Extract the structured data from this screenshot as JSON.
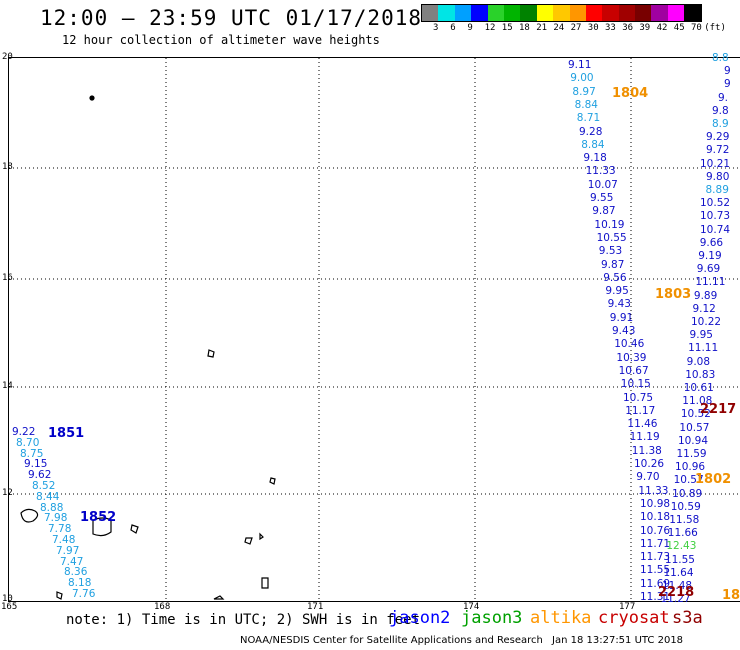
{
  "header": {
    "title": "12:00 – 23:59 UTC 01/17/2018",
    "subtitle": "12 hour collection of altimeter wave heights"
  },
  "color_scale": {
    "colors": [
      "#808080",
      "#00e5e5",
      "#00a0ff",
      "#0000ff",
      "#2ad22a",
      "#00b400",
      "#008200",
      "#ffff00",
      "#ffc800",
      "#ff9600",
      "#ff0000",
      "#c80000",
      "#a00000",
      "#780000",
      "#a000a0",
      "#ff00ff",
      "#000000"
    ],
    "labels": [
      "3",
      "6",
      "9",
      "12",
      "15",
      "18",
      "21",
      "24",
      "27",
      "30",
      "33",
      "36",
      "39",
      "42",
      "45",
      "70",
      "(ft)"
    ]
  },
  "axes": {
    "lat_labels": [
      "20",
      "18",
      "16",
      "14",
      "12",
      "10"
    ],
    "lon_labels": [
      "165",
      "168",
      "171",
      "174",
      "177"
    ]
  },
  "tracks": [
    {
      "color": "#1010c8",
      "values": [
        "9.11"
      ]
    },
    {
      "color": "#20a0e0",
      "values": [
        "9.00",
        "8.97",
        "8.84",
        "8.71"
      ]
    },
    {
      "color": "#1010c8",
      "values": [
        "9.28"
      ]
    },
    {
      "color": "#20a0e0",
      "values": [
        "8.84"
      ]
    },
    {
      "color": "#1010c8",
      "values": [
        "9.18",
        "11.33",
        "10.07",
        "9.55",
        "9.87",
        "10.19",
        "10.55",
        "9.53",
        "9.87",
        "9.56",
        "9.95",
        "9.43",
        "9.91",
        "9.43",
        "10.46",
        "10.39",
        "10.67",
        "10.15",
        "10.75",
        "11.17",
        "11.46",
        "11.19",
        "11.38",
        "10.26",
        "9.70",
        "11.33",
        "10.98",
        "10.18",
        "10.76",
        "11.71",
        "11.73",
        "11.55",
        "11.69",
        "11.31"
      ]
    }
  ],
  "right_track": {
    "values": [
      {
        "v": "8.8",
        "c": "#20a0e0"
      },
      {
        "v": "9",
        "c": "#1010c8"
      },
      {
        "v": "9",
        "c": "#1010c8"
      },
      {
        "v": "9.",
        "c": "#1010c8"
      },
      {
        "v": "9.8",
        "c": "#1010c8"
      },
      {
        "v": "8.9",
        "c": "#20a0e0"
      },
      {
        "v": "9.29",
        "c": "#1010c8"
      },
      {
        "v": "9.72",
        "c": "#1010c8"
      },
      {
        "v": "10.21",
        "c": "#1010c8"
      },
      {
        "v": "9.80",
        "c": "#1010c8"
      },
      {
        "v": "8.89",
        "c": "#20a0e0"
      },
      {
        "v": "10.52",
        "c": "#1010c8"
      },
      {
        "v": "10.73",
        "c": "#1010c8"
      },
      {
        "v": "10.74",
        "c": "#1010c8"
      },
      {
        "v": "9.66",
        "c": "#1010c8"
      },
      {
        "v": "9.19",
        "c": "#1010c8"
      },
      {
        "v": "9.69",
        "c": "#1010c8"
      },
      {
        "v": "11.11",
        "c": "#1010c8"
      },
      {
        "v": "9.89",
        "c": "#1010c8"
      },
      {
        "v": "9.12",
        "c": "#1010c8"
      },
      {
        "v": "10.22",
        "c": "#1010c8"
      },
      {
        "v": "9.95",
        "c": "#1010c8"
      },
      {
        "v": "11.11",
        "c": "#1010c8"
      },
      {
        "v": "9.08",
        "c": "#1010c8"
      },
      {
        "v": "10.83",
        "c": "#1010c8"
      },
      {
        "v": "10.61",
        "c": "#1010c8"
      },
      {
        "v": "11.08",
        "c": "#1010c8"
      },
      {
        "v": "10.52",
        "c": "#1010c8"
      },
      {
        "v": "10.57",
        "c": "#1010c8"
      },
      {
        "v": "10.94",
        "c": "#1010c8"
      },
      {
        "v": "11.59",
        "c": "#1010c8"
      },
      {
        "v": "10.96",
        "c": "#1010c8"
      },
      {
        "v": "10.57",
        "c": "#1010c8"
      },
      {
        "v": "10.89",
        "c": "#1010c8"
      },
      {
        "v": "10.59",
        "c": "#1010c8"
      },
      {
        "v": "11.58",
        "c": "#1010c8"
      },
      {
        "v": "11.66",
        "c": "#1010c8"
      },
      {
        "v": "12.43",
        "c": "#40d040"
      },
      {
        "v": "11.55",
        "c": "#1010c8"
      },
      {
        "v": "11.64",
        "c": "#1010c8"
      },
      {
        "v": "11.48",
        "c": "#1010c8"
      },
      {
        "v": "11.27",
        "c": "#1010c8"
      }
    ]
  },
  "left_track": {
    "values": [
      {
        "v": "9.22",
        "c": "#1010c8"
      },
      {
        "v": "8.70",
        "c": "#20a0e0"
      },
      {
        "v": "8.75",
        "c": "#20a0e0"
      },
      {
        "v": "9.15",
        "c": "#1010c8"
      },
      {
        "v": "9.62",
        "c": "#1010c8"
      },
      {
        "v": "8.52",
        "c": "#20a0e0"
      },
      {
        "v": "8.44",
        "c": "#20a0e0"
      },
      {
        "v": "8.88",
        "c": "#20a0e0"
      },
      {
        "v": "7.98",
        "c": "#20a0e0"
      },
      {
        "v": "7.78",
        "c": "#20a0e0"
      },
      {
        "v": "7.48",
        "c": "#20a0e0"
      },
      {
        "v": "7.97",
        "c": "#20a0e0"
      },
      {
        "v": "7.47",
        "c": "#20a0e0"
      },
      {
        "v": "8.36",
        "c": "#20a0e0"
      },
      {
        "v": "8.18",
        "c": "#20a0e0"
      },
      {
        "v": "7.76",
        "c": "#20a0e0"
      }
    ]
  },
  "time_tags": [
    {
      "label": "1804",
      "color": "#f09000"
    },
    {
      "label": "1803",
      "color": "#f09000"
    },
    {
      "label": "1802",
      "color": "#f09000"
    },
    {
      "label": "2217",
      "color": "#900000"
    },
    {
      "label": "2218",
      "color": "#900000"
    },
    {
      "label": "1851",
      "color": "#0000c8"
    },
    {
      "label": "1852",
      "color": "#0000c8"
    },
    {
      "label": "18",
      "color": "#f09000"
    }
  ],
  "footer": {
    "note": "note: 1) Time is in UTC; 2) SWH is in feet",
    "satellites": [
      {
        "name": "jason2",
        "color": "#0000ff"
      },
      {
        "name": "jason3",
        "color": "#00a000"
      },
      {
        "name": "altika",
        "color": "#ff9600"
      },
      {
        "name": "cryosat",
        "color": "#c80000"
      },
      {
        "name": "s3a",
        "color": "#900000"
      }
    ],
    "credit": "NOAA/NESDIS Center for Satellite Applications and Research",
    "timestamp": "Jan 18 13:27:51 UTC 2018"
  }
}
